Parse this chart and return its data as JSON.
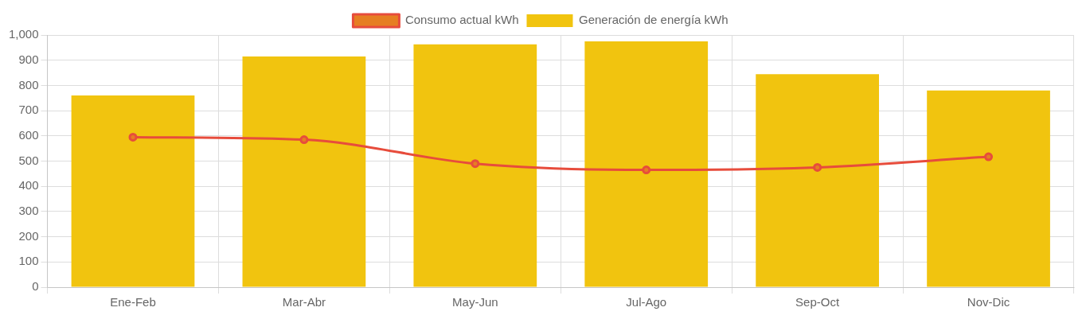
{
  "chart_data": {
    "type": "bar",
    "categories": [
      "Ene-Feb",
      "Mar-Abr",
      "May-Jun",
      "Jul-Ago",
      "Sep-Oct",
      "Nov-Dic"
    ],
    "series": [
      {
        "name": "Consumo actual kWh",
        "type": "line",
        "color": "#e74c3c",
        "values": [
          595,
          585,
          490,
          465,
          475,
          517
        ]
      },
      {
        "name": "Generación de energía kWh",
        "color": "#f1c40f",
        "values": [
          760,
          915,
          963,
          975,
          845,
          780
        ]
      }
    ],
    "ylim": [
      0,
      1000
    ],
    "yticks": [
      0,
      100,
      200,
      300,
      400,
      500,
      600,
      700,
      800,
      900,
      {
        "value": 1000,
        "label": "1,000"
      }
    ],
    "grid": true,
    "legend": "top",
    "marker": "circle",
    "line_style": "solid"
  }
}
